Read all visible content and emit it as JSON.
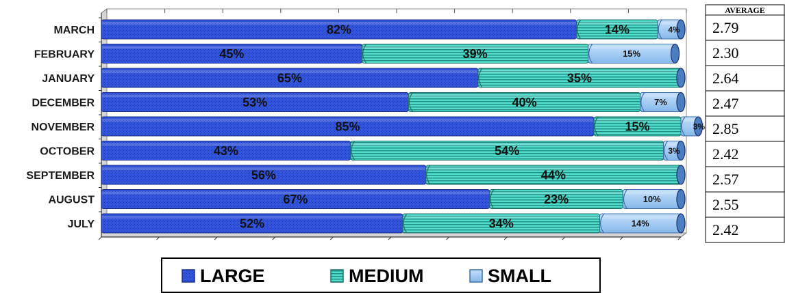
{
  "chart_data": {
    "type": "bar",
    "orientation": "horizontal",
    "stacked": true,
    "percent_stacked": true,
    "categories": [
      "MARCH",
      "FEBRUARY",
      "JANUARY",
      "DECEMBER",
      "NOVEMBER",
      "OCTOBER",
      "SEPTEMBER",
      "AUGUST",
      "JULY"
    ],
    "series": [
      {
        "name": "LARGE",
        "values": [
          82,
          45,
          65,
          53,
          85,
          43,
          56,
          67,
          52
        ],
        "labels": [
          "82%",
          "45%",
          "65%",
          "53%",
          "85%",
          "43%",
          "56%",
          "67%",
          "52%"
        ],
        "color": "#3355dd"
      },
      {
        "name": "MEDIUM",
        "values": [
          14,
          39,
          35,
          40,
          15,
          54,
          44,
          23,
          34
        ],
        "labels": [
          "14%",
          "39%",
          "35%",
          "40%",
          "15%",
          "54%",
          "44%",
          "23%",
          "34%"
        ],
        "color": "#4fd6c8"
      },
      {
        "name": "SMALL",
        "values": [
          4,
          15,
          0,
          7,
          3,
          3,
          0,
          10,
          14
        ],
        "labels": [
          "4%",
          "15%",
          "",
          "7%",
          "3%",
          "3%",
          "",
          "10%",
          "14%"
        ],
        "color": "#9cc8f2"
      }
    ],
    "xlim": [
      0,
      100
    ],
    "legend_position": "bottom",
    "grid": false
  },
  "average_table": {
    "header": "AVERAGE",
    "values": [
      "2.79",
      "2.30",
      "2.64",
      "2.47",
      "2.85",
      "2.42",
      "2.57",
      "2.55",
      "2.42"
    ]
  }
}
